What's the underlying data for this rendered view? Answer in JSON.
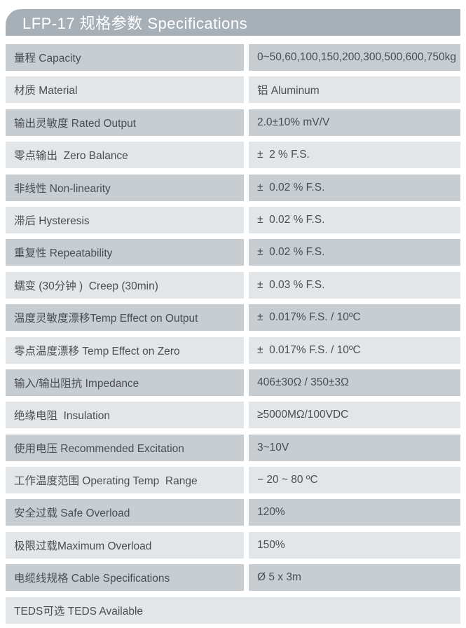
{
  "header": {
    "title": "LFP-17 规格参数 Specifications"
  },
  "colors": {
    "header_bg": "#a8b0b7",
    "header_text": "#ffffff",
    "row_dark": "#c8cdd2",
    "row_light": "#e3e6e8",
    "text": "#494e53",
    "page_bg": "#ffffff"
  },
  "table": {
    "rows": [
      {
        "label": "量程 Capacity",
        "value": "0~50,60,100,150,200,300,500,600,750kg"
      },
      {
        "label": "材质 Material",
        "value": "铝 Aluminum"
      },
      {
        "label": "输出灵敏度 Rated Output",
        "value": "2.0±10% mV/V"
      },
      {
        "label": "零点输出  Zero Balance",
        "value": "±  2 % F.S."
      },
      {
        "label": "非线性 Non-linearity",
        "value": "±  0.02 % F.S."
      },
      {
        "label": "滞后 Hysteresis",
        "value": "±  0.02 % F.S."
      },
      {
        "label": "重复性 Repeatability",
        "value": "±  0.02 % F.S."
      },
      {
        "label": "蠕变 (30分钟 )  Creep (30min)",
        "value": "±  0.03 % F.S."
      },
      {
        "label": "温度灵敏度漂移Temp Effect on Output",
        "value": "±  0.017% F.S. / 10ºC"
      },
      {
        "label": "零点温度漂移 Temp Effect on Zero",
        "value": "±  0.017% F.S. / 10ºC"
      },
      {
        "label": "输入/输出阻抗 Impedance",
        "value": "406±30Ω / 350±3Ω"
      },
      {
        "label": "绝缘电阻  Insulation",
        "value": "≥5000MΩ/100VDC"
      },
      {
        "label": "使用电压 Recommended Excitation",
        "value": "3~10V"
      },
      {
        "label": "工作温度范围 Operating Temp  Range",
        "value": "− 20 ~ 80 ºC"
      },
      {
        "label": "安全过载 Safe Overload",
        "value": "120%"
      },
      {
        "label": "极限过载Maximum Overload",
        "value": "150%"
      },
      {
        "label": "电缆线规格 Cable Specifications",
        "value": "Ø 5 x 3m"
      },
      {
        "label": "TEDS可选 TEDS Available",
        "value": ""
      }
    ]
  }
}
